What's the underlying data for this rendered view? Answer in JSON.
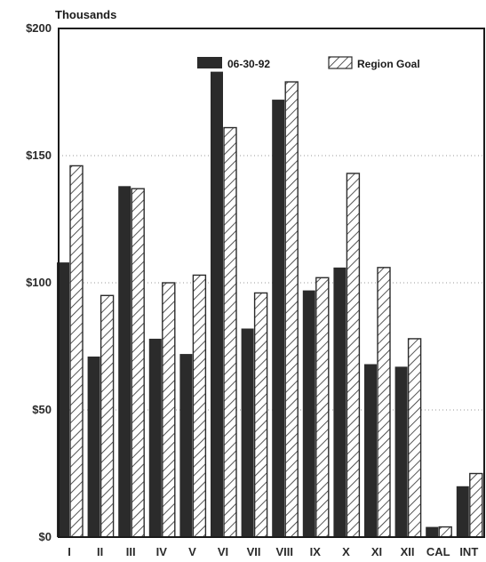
{
  "chart_data": {
    "type": "bar",
    "unit_label": "Thousands",
    "categories": [
      "I",
      "II",
      "III",
      "IV",
      "V",
      "VI",
      "VII",
      "VIII",
      "IX",
      "X",
      "XI",
      "XII",
      "CAL",
      "INT"
    ],
    "series": [
      {
        "name": "06-30-92",
        "style": "solid",
        "color": "#2b2b2b",
        "values": [
          108,
          71,
          138,
          78,
          72,
          183,
          82,
          172,
          97,
          106,
          68,
          67,
          4,
          20
        ]
      },
      {
        "name": "Region Goal",
        "style": "hatched",
        "color": "#2b2b2b",
        "values": [
          146,
          95,
          137,
          100,
          103,
          161,
          96,
          179,
          102,
          143,
          106,
          78,
          4,
          25
        ]
      }
    ],
    "y_ticks": [
      "$0",
      "$50",
      "$100",
      "$150",
      "$200"
    ],
    "y_tick_values": [
      0,
      50,
      100,
      150,
      200
    ],
    "ylim": [
      0,
      200
    ],
    "grid": "horizontal dotted",
    "legend_position": "top-right"
  }
}
